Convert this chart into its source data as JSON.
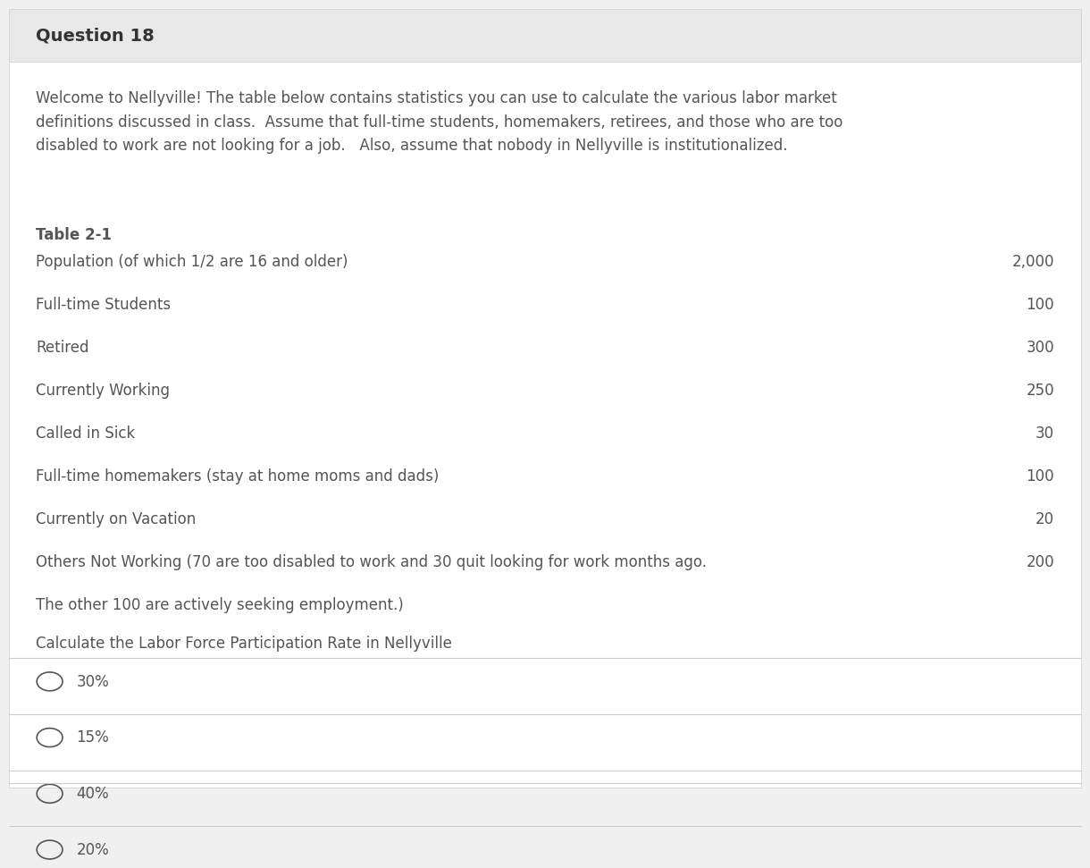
{
  "title": "Question 18",
  "bg_color": "#f0f0f0",
  "content_bg": "#ffffff",
  "header_bg": "#e8e8e8",
  "title_color": "#333333",
  "text_color": "#555555",
  "separator_color": "#cccccc",
  "intro_text": "Welcome to Nellyville! The table below contains statistics you can use to calculate the various labor market\ndefinitions discussed in class.  Assume that full-time students, homemakers, retirees, and those who are too\ndisabled to work are not looking for a job.   Also, assume that nobody in Nellyville is institutionalized.",
  "table_title": "Table 2-1",
  "table_rows": [
    [
      "Population (of which 1/2 are 16 and older)",
      "2,000"
    ],
    [
      "Full-time Students",
      "100"
    ],
    [
      "Retired",
      "300"
    ],
    [
      "Currently Working",
      "250"
    ],
    [
      "Called in Sick",
      "30"
    ],
    [
      "Full-time homemakers (stay at home moms and dads)",
      "100"
    ],
    [
      "Currently on Vacation",
      "20"
    ],
    [
      "Others Not Working (70 are too disabled to work and 30 quit looking for work months ago.",
      "200"
    ],
    [
      "The other 100 are actively seeking employment.)",
      ""
    ]
  ],
  "question_text": "Calculate the Labor Force Participation Rate in Nellyville",
  "choices": [
    "30%",
    "15%",
    "40%",
    "20%"
  ],
  "title_fontsize": 14,
  "intro_fontsize": 12,
  "table_fontsize": 12,
  "choice_fontsize": 12
}
